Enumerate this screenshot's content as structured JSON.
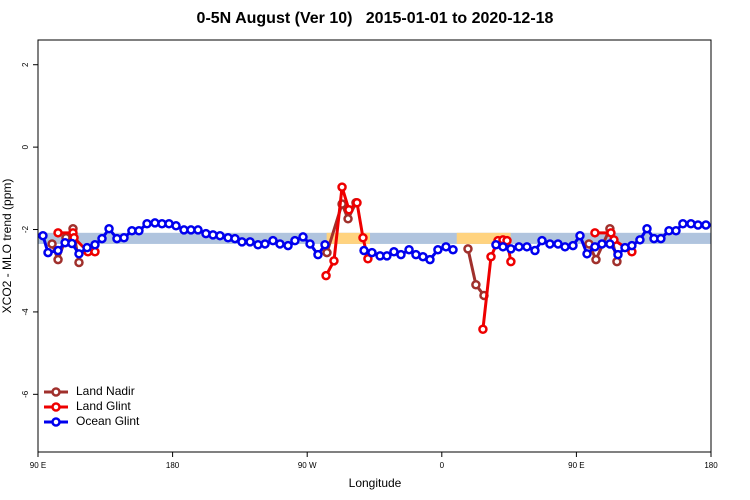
{
  "chart_data": {
    "type": "line",
    "title": "0-5N August (Ver 10)   2015-01-01 to 2020-12-18",
    "xlabel": "Longitude",
    "ylabel": "XCO2 - MLO trend (ppm)",
    "xlim": [
      90,
      540
    ],
    "ylim": [
      -7.4,
      2.6
    ],
    "xticks": [
      {
        "value": 90,
        "label": "90 E"
      },
      180,
      {
        "value": 270,
        "label": "90 W"
      },
      {
        "value": 360,
        "label": "0"
      },
      {
        "value": 450,
        "label": "90 E"
      },
      {
        "value": 540,
        "label": "180"
      }
    ],
    "yticks": [
      2,
      0,
      -2,
      -4,
      -6
    ],
    "legend": "bottom-left",
    "bands": [
      {
        "xlim": [
          90,
          540
        ],
        "ylim": [
          -2.35,
          -2.08
        ],
        "color": "#b0c4de"
      },
      {
        "xlim": [
          283,
          312
        ],
        "ylim": [
          -2.35,
          -2.08
        ],
        "color": "#ffd37f"
      },
      {
        "xlim": [
          370,
          406
        ],
        "ylim": [
          -2.35,
          -2.08
        ],
        "color": "#ffd37f"
      }
    ],
    "series": [
      {
        "name": "Land Nadir",
        "color": "#a0302c",
        "x": [
          99.4,
          103.4,
          108.7,
          113.4,
          117.4,
          null,
          283.2,
          293.3,
          297.3,
          302.6,
          null,
          377.5,
          382.8,
          388.2,
          null,
          458.4,
          463.1,
          472.4,
          477.1
        ],
        "values": [
          -2.35,
          -2.73,
          -2.2,
          -1.98,
          -2.8,
          null,
          -2.56,
          -1.38,
          -1.74,
          -1.35,
          null,
          -2.47,
          -3.34,
          -3.6,
          null,
          -2.35,
          -2.73,
          -1.98,
          -2.78
        ]
      },
      {
        "name": "Land Glint",
        "color": "#ee0000",
        "x": [
          103.4,
          113.4,
          114.1,
          123.4,
          128.1,
          null,
          282.6,
          287.9,
          293.3,
          297.9,
          303.3,
          307.3,
          310.6,
          null,
          387.5,
          392.9,
          397.6,
          400.9,
          403.6,
          406.2,
          null,
          462.4,
          473.1,
          475.1,
          487.1
        ],
        "values": [
          -2.08,
          -2.08,
          -2.2,
          -2.54,
          -2.54,
          null,
          -3.12,
          -2.76,
          -0.97,
          -1.52,
          -1.35,
          -2.2,
          -2.71,
          null,
          -4.42,
          -2.66,
          -2.27,
          -2.25,
          -2.27,
          -2.78,
          null,
          -2.08,
          -2.08,
          -2.25,
          -2.54
        ]
      },
      {
        "name": "Ocean Glint",
        "color": "#0000ee",
        "x": [
          93.3,
          96.7,
          103.4,
          108.1,
          112.7,
          117.4,
          122.8,
          128.1,
          132.8,
          137.5,
          142.8,
          147.5,
          152.8,
          157.5,
          162.9,
          168.2,
          172.9,
          177.6,
          182.3,
          187.6,
          192.3,
          197.0,
          202.3,
          207.0,
          211.7,
          217.1,
          221.7,
          226.4,
          231.8,
          237.1,
          241.8,
          247.1,
          251.8,
          257.2,
          261.8,
          267.2,
          271.9,
          277.2,
          281.9,
          null,
          308.0,
          313.3,
          318.7,
          323.3,
          328.0,
          332.7,
          338.1,
          342.7,
          347.4,
          352.1,
          357.4,
          362.8,
          367.5,
          null,
          396.2,
          400.9,
          406.2,
          411.6,
          416.9,
          422.3,
          427.0,
          432.3,
          437.7,
          442.4,
          447.7,
          452.4,
          457.1,
          462.4,
          467.1,
          472.4,
          477.8,
          482.5,
          487.1,
          492.5,
          497.2,
          501.9,
          506.5,
          511.9,
          516.6,
          521.2,
          526.6,
          531.3,
          536.6
        ],
        "values": [
          -2.15,
          -2.56,
          -2.51,
          -2.32,
          -2.34,
          -2.59,
          -2.44,
          -2.37,
          -2.22,
          -1.98,
          -2.22,
          -2.2,
          -2.03,
          -2.03,
          -1.86,
          -1.84,
          -1.86,
          -1.86,
          -1.91,
          -2.01,
          -2.01,
          -2.01,
          -2.1,
          -2.13,
          -2.15,
          -2.2,
          -2.22,
          -2.3,
          -2.3,
          -2.37,
          -2.35,
          -2.27,
          -2.35,
          -2.39,
          -2.27,
          -2.18,
          -2.35,
          -2.61,
          -2.37,
          null,
          -2.51,
          -2.56,
          -2.64,
          -2.64,
          -2.54,
          -2.61,
          -2.49,
          -2.61,
          -2.66,
          -2.73,
          -2.49,
          -2.42,
          -2.49,
          null,
          -2.37,
          -2.42,
          -2.47,
          -2.42,
          -2.42,
          -2.51,
          -2.27,
          -2.35,
          -2.35,
          -2.42,
          -2.39,
          -2.15,
          -2.59,
          -2.42,
          -2.35,
          -2.35,
          -2.61,
          -2.44,
          -2.39,
          -2.25,
          -1.98,
          -2.22,
          -2.22,
          -2.03,
          -2.03,
          -1.86,
          -1.86,
          -1.89,
          -1.89
        ]
      }
    ]
  }
}
